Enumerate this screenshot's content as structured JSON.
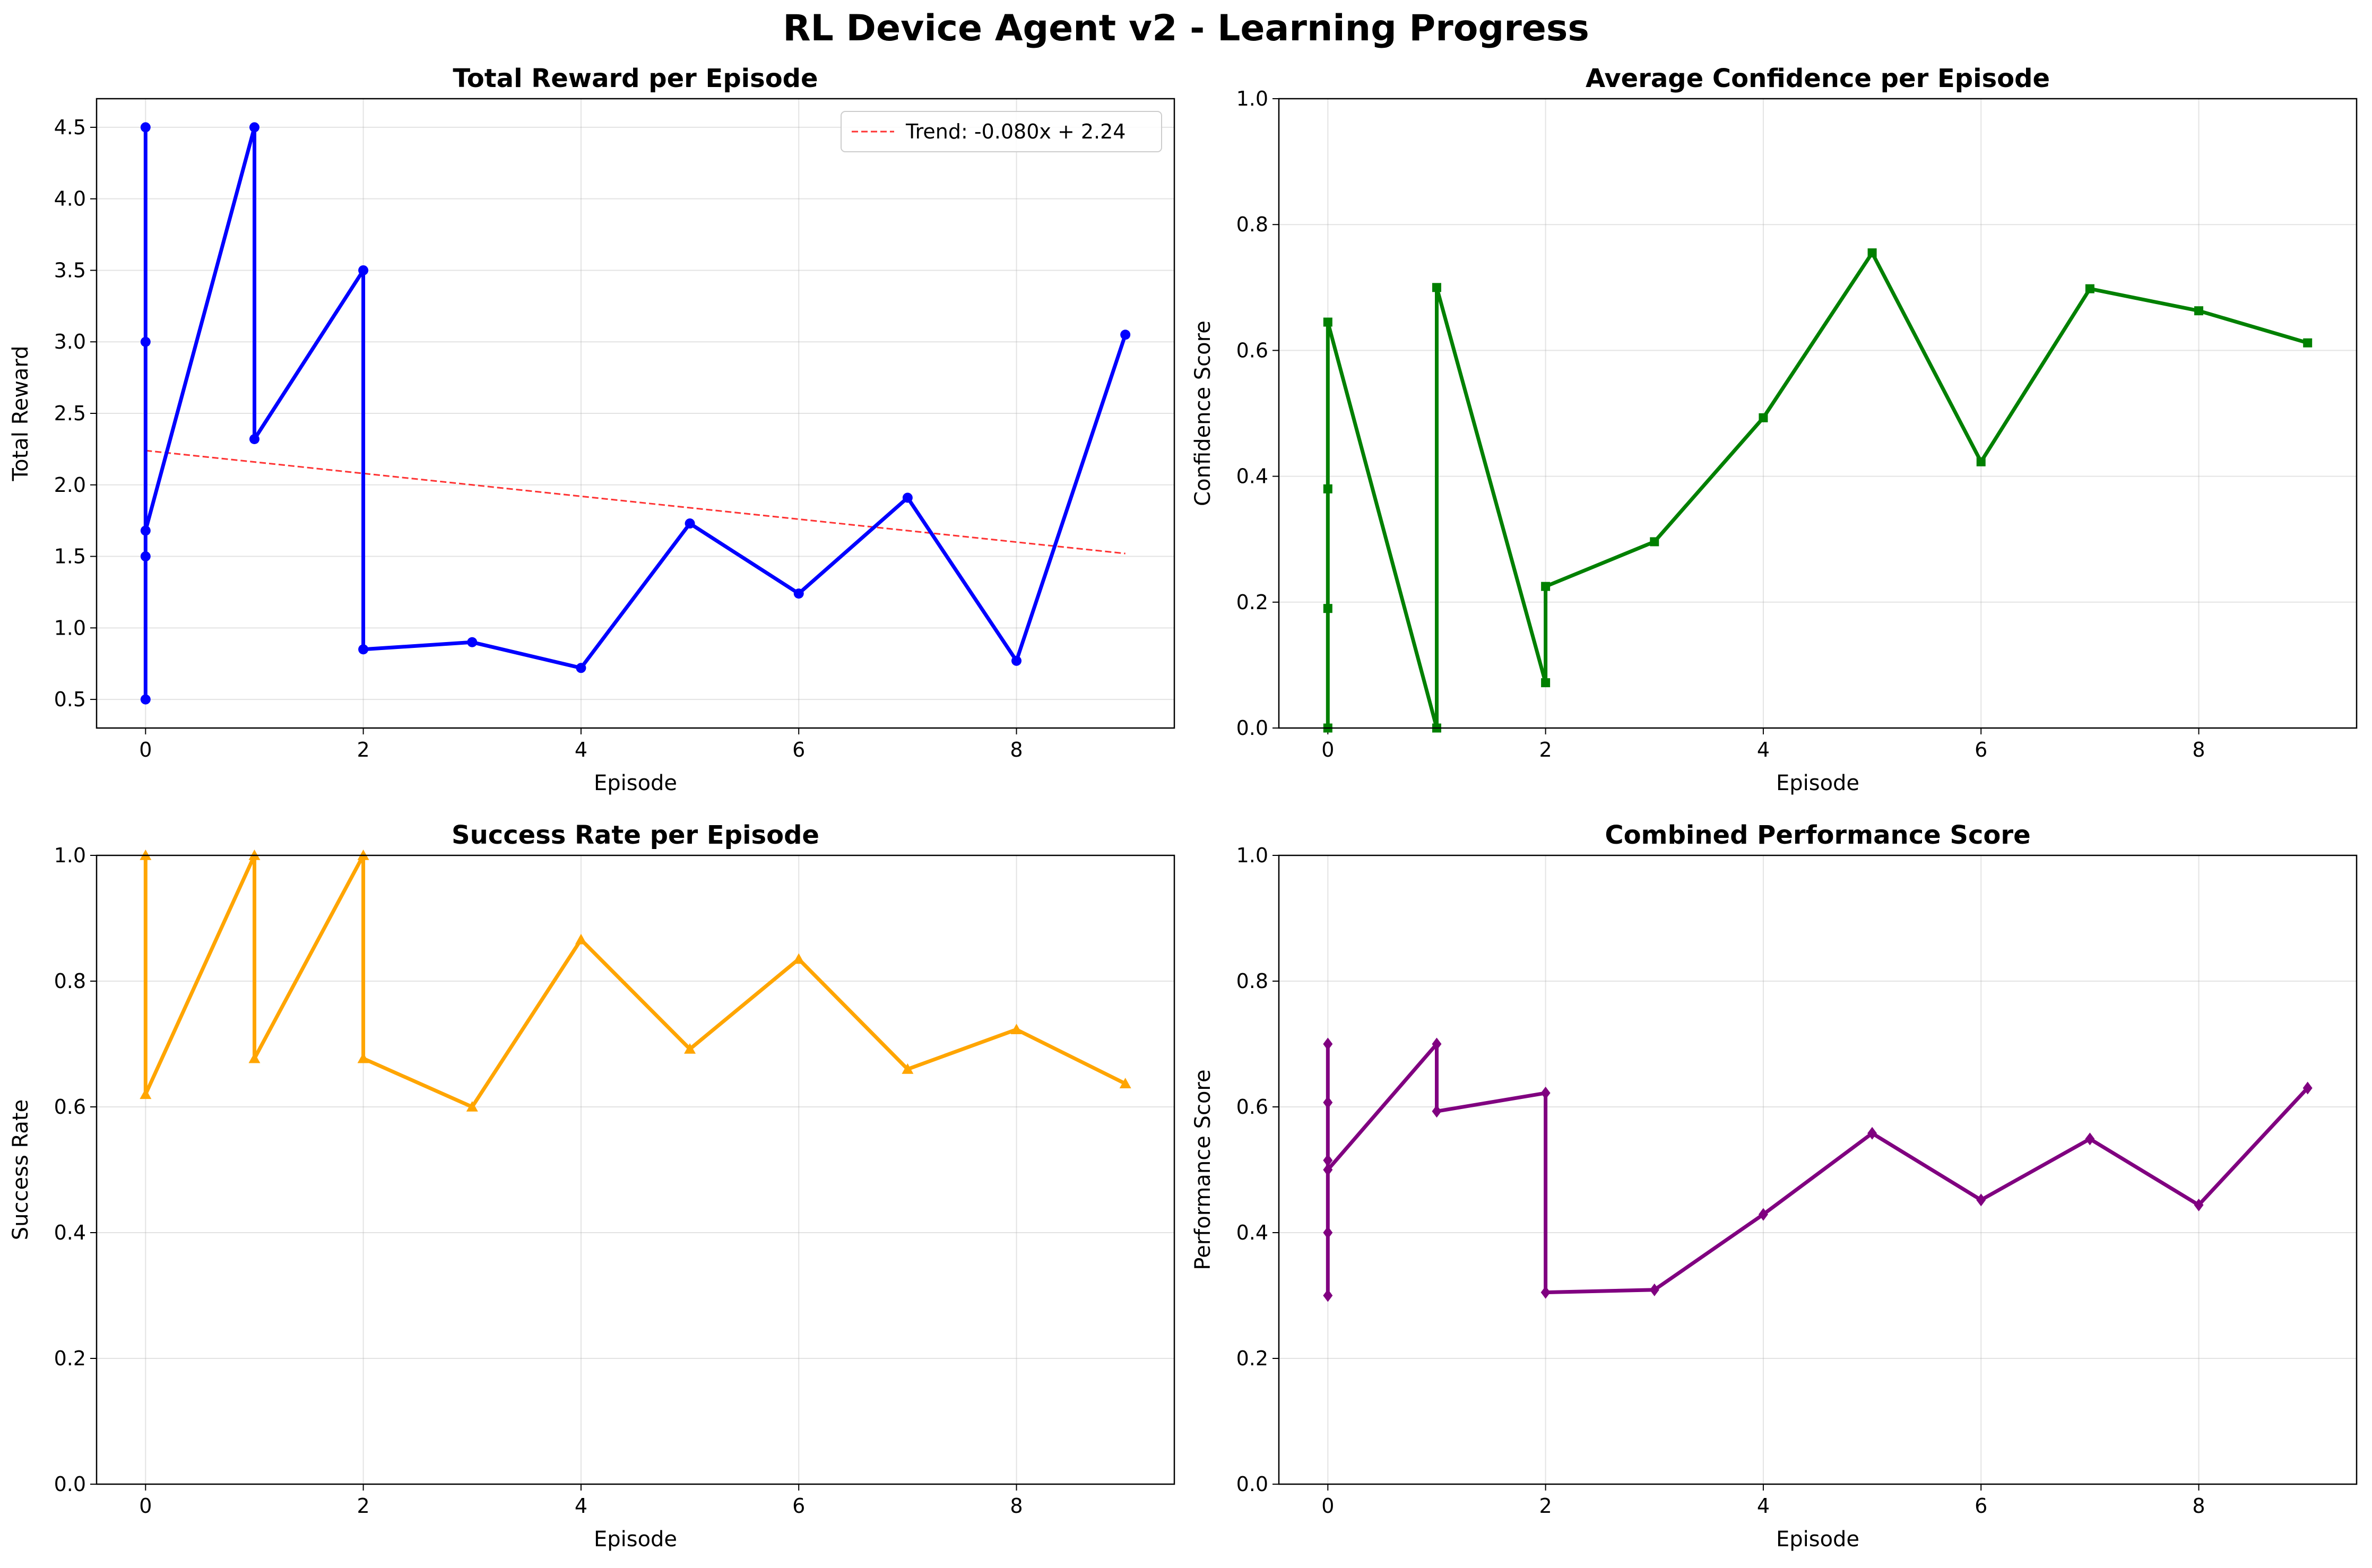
{
  "figure": {
    "title": "RL Device Agent v2 - Learning Progress"
  },
  "chart_data": [
    {
      "type": "line",
      "title": "Total Reward per Episode",
      "xlabel": "Episode",
      "ylabel": "Total Reward",
      "xlim": [
        -0.45,
        9.45
      ],
      "ylim": [
        0.3,
        4.7
      ],
      "xticks": [
        0,
        2,
        4,
        6,
        8
      ],
      "yticks": [
        0.5,
        1.0,
        1.5,
        2.0,
        2.5,
        3.0,
        3.5,
        4.0,
        4.5
      ],
      "ytick_decimals": 1,
      "grid": true,
      "series": [
        {
          "color": "#0000ff",
          "marker": "circle",
          "x": [
            0,
            0,
            0,
            0,
            0,
            1,
            1,
            2,
            2,
            3,
            4,
            5,
            6,
            7,
            8,
            9
          ],
          "y": [
            0.5,
            1.5,
            4.5,
            3.0,
            1.68,
            4.5,
            2.32,
            3.5,
            0.85,
            0.9,
            0.72,
            1.73,
            1.24,
            1.91,
            0.77,
            3.05
          ]
        }
      ],
      "trend": {
        "label": "Trend: -0.080x + 2.24",
        "slope": -0.08,
        "intercept": 2.24,
        "x_range": [
          0,
          9
        ],
        "color": "#ff0000",
        "style": "dashed"
      },
      "legend": "top-right"
    },
    {
      "type": "line",
      "title": "Average Confidence per Episode",
      "xlabel": "Episode",
      "ylabel": "Confidence Score",
      "xlim": [
        -0.45,
        9.45
      ],
      "ylim": [
        0,
        1
      ],
      "xticks": [
        0,
        2,
        4,
        6,
        8
      ],
      "yticks": [
        0.0,
        0.2,
        0.4,
        0.6,
        0.8,
        1.0
      ],
      "ytick_decimals": 1,
      "grid": true,
      "series": [
        {
          "color": "#008000",
          "marker": "square",
          "x": [
            0,
            0,
            0,
            0,
            1,
            1,
            2,
            2,
            3,
            4,
            5,
            6,
            7,
            8,
            9
          ],
          "y": [
            0.0,
            0.19,
            0.38,
            0.645,
            0.0,
            0.7,
            0.072,
            0.225,
            0.296,
            0.493,
            0.755,
            0.423,
            0.698,
            0.663,
            0.612
          ]
        }
      ]
    },
    {
      "type": "line",
      "title": "Success Rate per Episode",
      "xlabel": "Episode",
      "ylabel": "Success Rate",
      "xlim": [
        -0.45,
        9.45
      ],
      "ylim": [
        0,
        1
      ],
      "xticks": [
        0,
        2,
        4,
        6,
        8
      ],
      "yticks": [
        0.0,
        0.2,
        0.4,
        0.6,
        0.8,
        1.0
      ],
      "ytick_decimals": 1,
      "grid": true,
      "series": [
        {
          "color": "#ffa500",
          "marker": "triangle",
          "x": [
            0,
            0,
            1,
            1,
            2,
            2,
            3,
            4,
            5,
            6,
            7,
            8,
            9
          ],
          "y": [
            1.0,
            0.62,
            1.0,
            0.677,
            1.0,
            0.677,
            0.6,
            0.866,
            0.692,
            0.835,
            0.66,
            0.723,
            0.637
          ]
        }
      ]
    },
    {
      "type": "line",
      "title": "Combined Performance Score",
      "xlabel": "Episode",
      "ylabel": "Performance Score",
      "xlim": [
        -0.45,
        9.45
      ],
      "ylim": [
        0,
        1
      ],
      "xticks": [
        0,
        2,
        4,
        6,
        8
      ],
      "yticks": [
        0.0,
        0.2,
        0.4,
        0.6,
        0.8,
        1.0
      ],
      "ytick_decimals": 1,
      "grid": true,
      "series": [
        {
          "color": "#800080",
          "marker": "diamond",
          "x": [
            0,
            0,
            0,
            0,
            0,
            0,
            1,
            1,
            2,
            2,
            3,
            4,
            5,
            6,
            7,
            8,
            9
          ],
          "y": [
            0.3,
            0.4,
            0.7,
            0.607,
            0.515,
            0.5,
            0.7,
            0.593,
            0.622,
            0.305,
            0.309,
            0.429,
            0.558,
            0.452,
            0.549,
            0.444,
            0.63
          ]
        }
      ]
    }
  ]
}
